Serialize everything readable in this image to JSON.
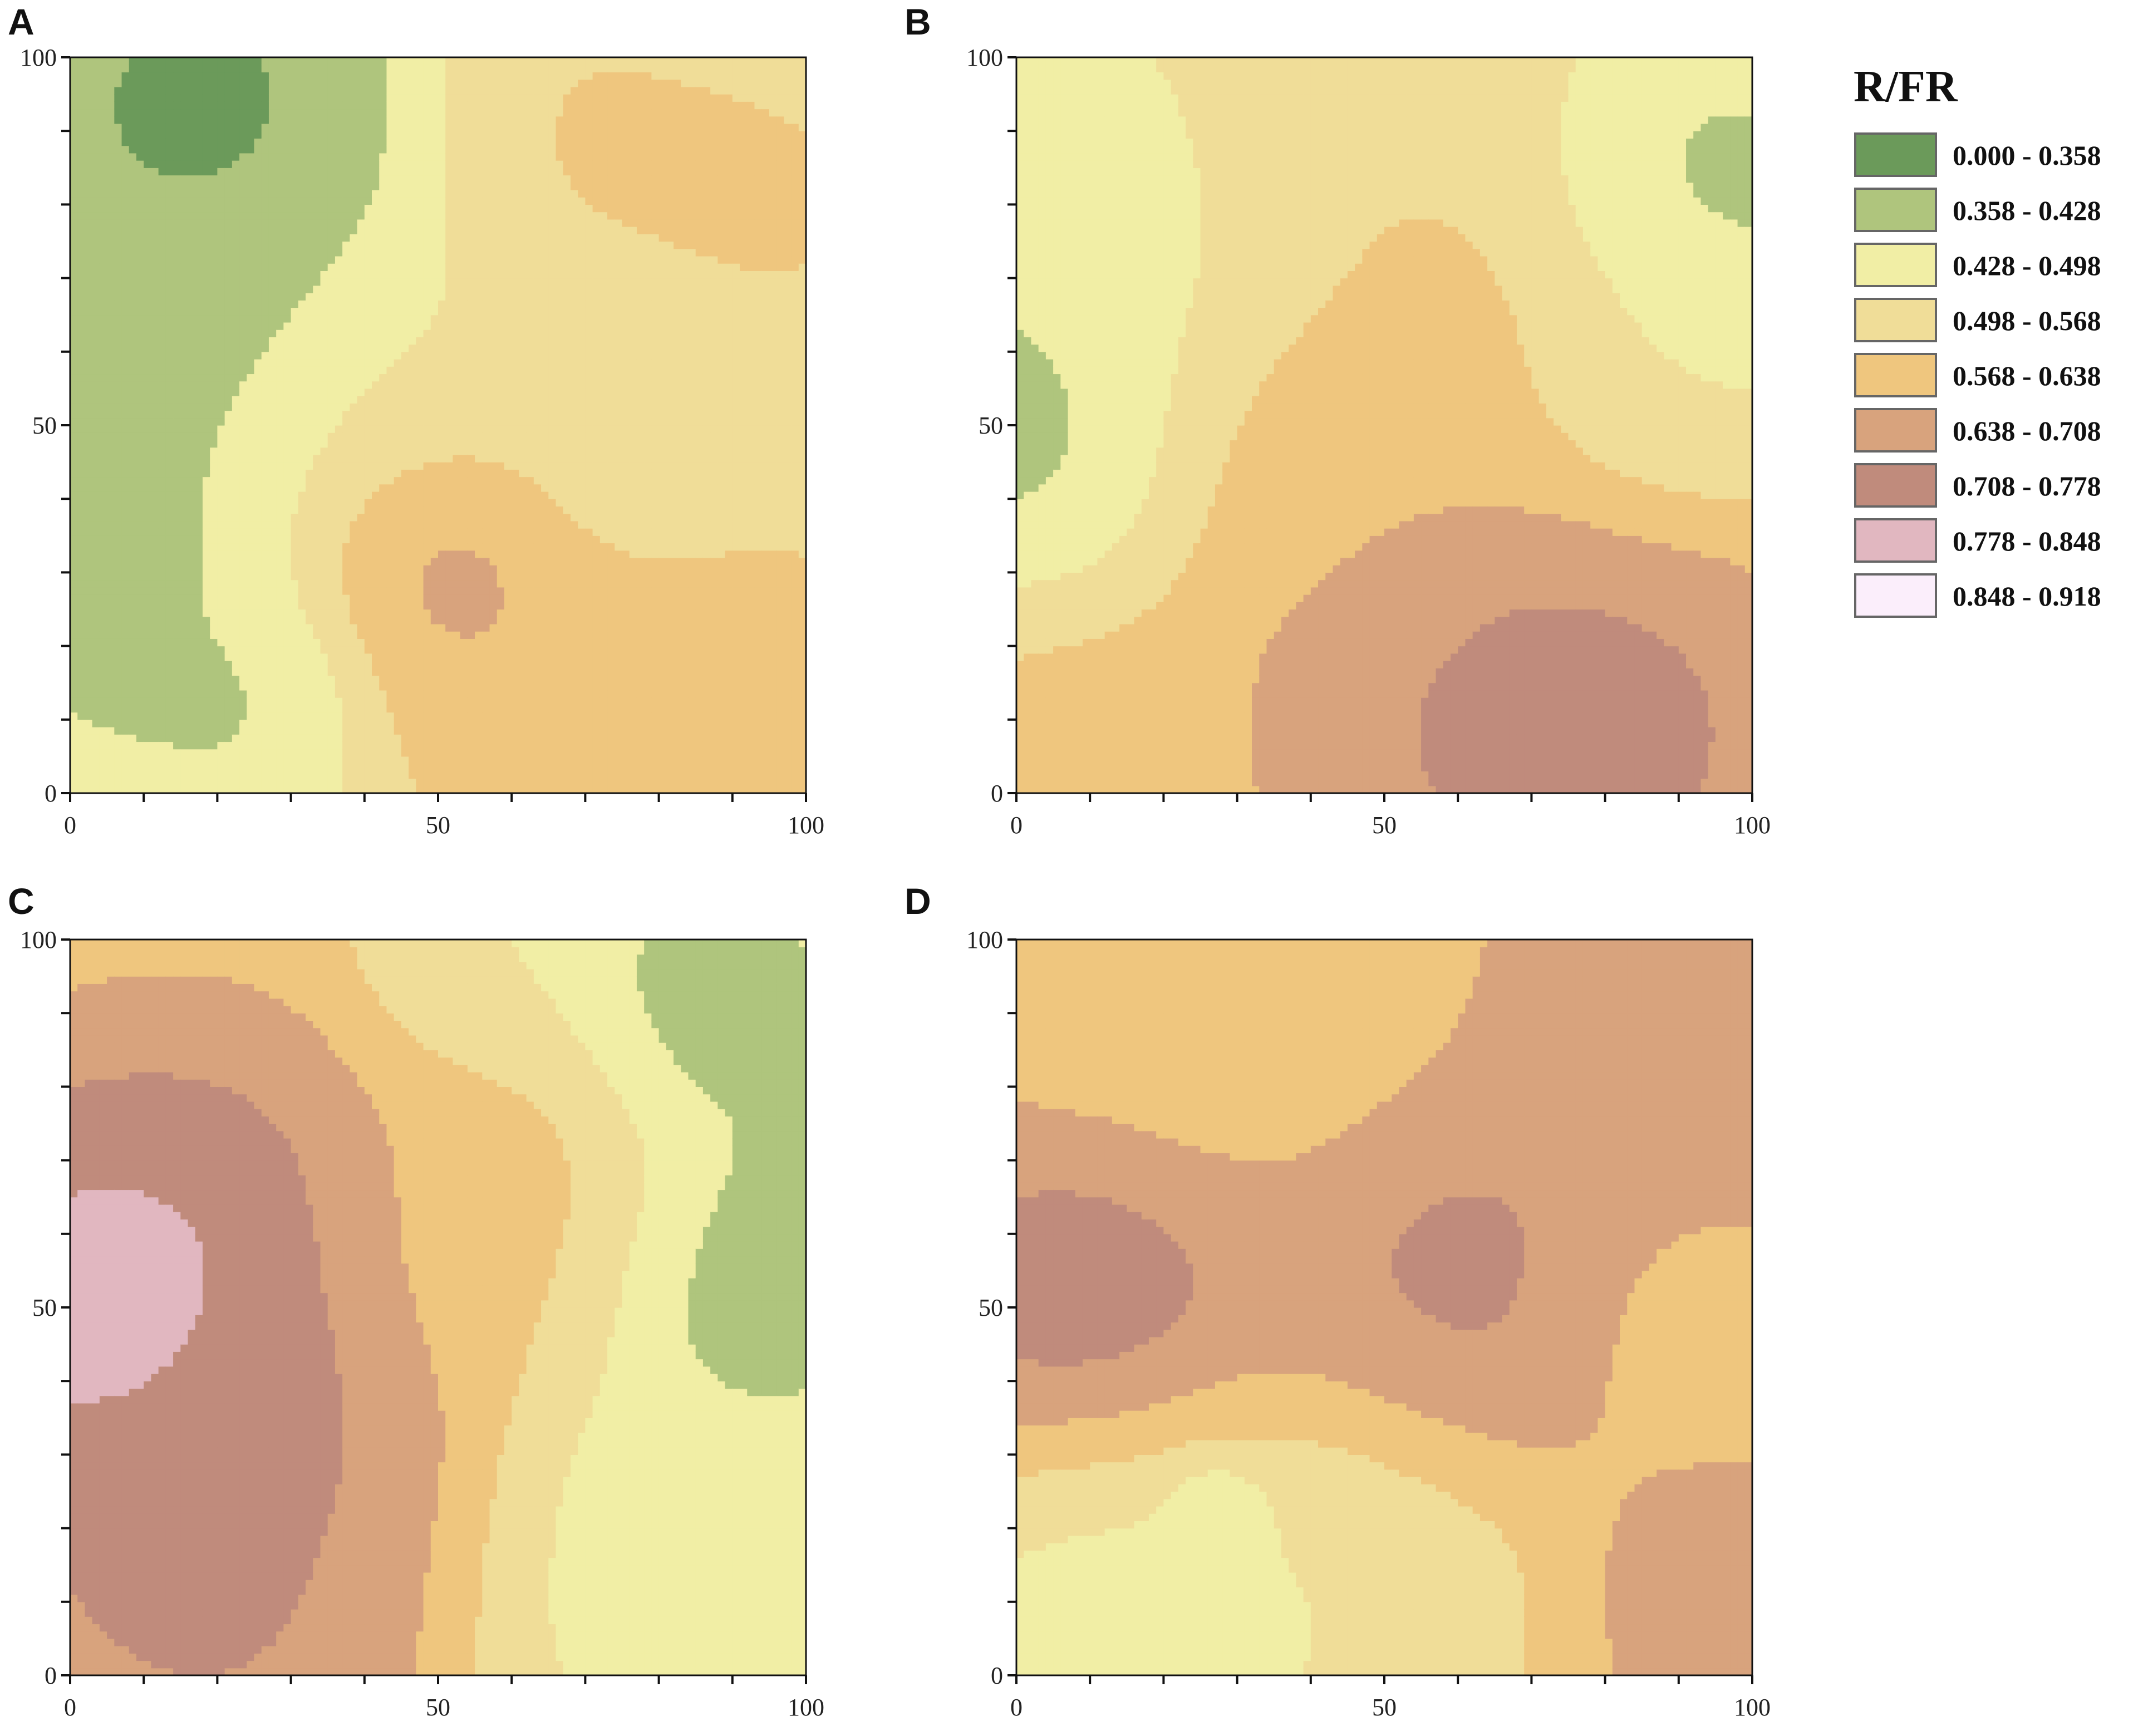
{
  "chart_data": {
    "type": "heatmap",
    "legend": {
      "title": "R/FR",
      "classes": [
        {
          "label": "0.000 - 0.358",
          "min": 0.0,
          "max": 0.358,
          "color": "#6b9a5a"
        },
        {
          "label": "0.358 - 0.428",
          "min": 0.358,
          "max": 0.428,
          "color": "#afc57d"
        },
        {
          "label": "0.428 - 0.498",
          "min": 0.428,
          "max": 0.498,
          "color": "#f1eea5"
        },
        {
          "label": "0.498 - 0.568",
          "min": 0.498,
          "max": 0.568,
          "color": "#f0dd98"
        },
        {
          "label": "0.568 - 0.638",
          "min": 0.568,
          "max": 0.638,
          "color": "#efc67e"
        },
        {
          "label": "0.638 - 0.708",
          "min": 0.638,
          "max": 0.708,
          "color": "#d8a37d"
        },
        {
          "label": "0.708 - 0.778",
          "min": 0.708,
          "max": 0.778,
          "color": "#c08b7c"
        },
        {
          "label": "0.778 - 0.848",
          "min": 0.778,
          "max": 0.848,
          "color": "#e1b7c0"
        },
        {
          "label": "0.848 - 0.918",
          "min": 0.848,
          "max": 0.918,
          "color": "#fbeefb"
        }
      ]
    },
    "axes": {
      "xlim": [
        0,
        100
      ],
      "ylim": [
        0,
        100
      ],
      "major_ticks": [
        0,
        50,
        100
      ],
      "minor_tick_step": 10,
      "tick_labels": [
        "0",
        "50",
        "100"
      ]
    },
    "panels": [
      {
        "letter": "A",
        "base_value": 0.47,
        "fields": [
          {
            "x": 16,
            "y": 85,
            "r": 18,
            "value": 0.3
          },
          {
            "x": 6,
            "y": 66,
            "r": 20,
            "value": 0.4
          },
          {
            "x": 12,
            "y": 30,
            "r": 16,
            "value": 0.4
          },
          {
            "x": 5,
            "y": 33,
            "r": 5,
            "value": 0.33
          },
          {
            "x": 26,
            "y": 15,
            "r": 8,
            "value": 0.4
          },
          {
            "x": 50,
            "y": 30,
            "r": 9,
            "value": 0.74
          },
          {
            "x": 48,
            "y": 30,
            "r": 15,
            "value": 0.62
          },
          {
            "x": 70,
            "y": 88,
            "r": 14,
            "value": 0.6
          },
          {
            "x": 95,
            "y": 80,
            "r": 12,
            "value": 0.6
          },
          {
            "x": 90,
            "y": 5,
            "r": 18,
            "value": 0.66
          },
          {
            "x": 65,
            "y": 8,
            "r": 10,
            "value": 0.67
          },
          {
            "x": 44,
            "y": 58,
            "r": 14,
            "value": 0.52
          },
          {
            "x": 78,
            "y": 52,
            "r": 10,
            "value": 0.5
          }
        ]
      },
      {
        "letter": "B",
        "base_value": 0.54,
        "fields": [
          {
            "x": 3,
            "y": 50,
            "r": 14,
            "value": 0.38
          },
          {
            "x": 4,
            "y": 82,
            "r": 12,
            "value": 0.4
          },
          {
            "x": 97,
            "y": 82,
            "r": 14,
            "value": 0.39
          },
          {
            "x": 72,
            "y": 10,
            "r": 16,
            "value": 0.8
          },
          {
            "x": 62,
            "y": 12,
            "r": 22,
            "value": 0.7
          },
          {
            "x": 90,
            "y": 5,
            "r": 12,
            "value": 0.72
          },
          {
            "x": 40,
            "y": 45,
            "r": 14,
            "value": 0.61
          },
          {
            "x": 62,
            "y": 58,
            "r": 12,
            "value": 0.6
          },
          {
            "x": 45,
            "y": 80,
            "r": 16,
            "value": 0.57
          },
          {
            "x": 85,
            "y": 55,
            "r": 12,
            "value": 0.49
          },
          {
            "x": 20,
            "y": 75,
            "r": 12,
            "value": 0.47
          },
          {
            "x": 8,
            "y": 8,
            "r": 12,
            "value": 0.6
          }
        ]
      },
      {
        "letter": "C",
        "base_value": 0.56,
        "fields": [
          {
            "x": 5,
            "y": 50,
            "r": 12,
            "value": 0.88
          },
          {
            "x": 14,
            "y": 50,
            "r": 22,
            "value": 0.8
          },
          {
            "x": 30,
            "y": 30,
            "r": 16,
            "value": 0.72
          },
          {
            "x": 18,
            "y": 8,
            "r": 18,
            "value": 0.74
          },
          {
            "x": 93,
            "y": 55,
            "r": 12,
            "value": 0.33
          },
          {
            "x": 85,
            "y": 90,
            "r": 10,
            "value": 0.33
          },
          {
            "x": 92,
            "y": 75,
            "r": 20,
            "value": 0.4
          },
          {
            "x": 80,
            "y": 20,
            "r": 18,
            "value": 0.44
          },
          {
            "x": 65,
            "y": 70,
            "r": 14,
            "value": 0.66
          },
          {
            "x": 55,
            "y": 55,
            "r": 12,
            "value": 0.58
          },
          {
            "x": 60,
            "y": 95,
            "r": 10,
            "value": 0.48
          }
        ]
      },
      {
        "letter": "D",
        "base_value": 0.63,
        "fields": [
          {
            "x": 10,
            "y": 53,
            "r": 10,
            "value": 0.81
          },
          {
            "x": 14,
            "y": 52,
            "r": 18,
            "value": 0.73
          },
          {
            "x": 60,
            "y": 55,
            "r": 14,
            "value": 0.75
          },
          {
            "x": 17,
            "y": 10,
            "r": 17,
            "value": 0.4
          },
          {
            "x": 27,
            "y": 22,
            "r": 4,
            "value": 0.33
          },
          {
            "x": 40,
            "y": 10,
            "r": 18,
            "value": 0.5
          },
          {
            "x": 25,
            "y": 90,
            "r": 18,
            "value": 0.55
          },
          {
            "x": 90,
            "y": 48,
            "r": 10,
            "value": 0.6
          },
          {
            "x": 88,
            "y": 85,
            "r": 16,
            "value": 0.68
          },
          {
            "x": 95,
            "y": 10,
            "r": 10,
            "value": 0.68
          }
        ]
      }
    ]
  }
}
